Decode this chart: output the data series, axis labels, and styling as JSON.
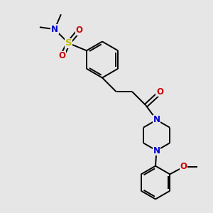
{
  "background_color": "#e6e6e6",
  "bond_color": "#000000",
  "N_color": "#0000cc",
  "O_color": "#cc0000",
  "S_color": "#bbbb00",
  "figsize": [
    3.0,
    3.0
  ],
  "dpi": 100,
  "xlim": [
    0,
    10
  ],
  "ylim": [
    0,
    10
  ]
}
